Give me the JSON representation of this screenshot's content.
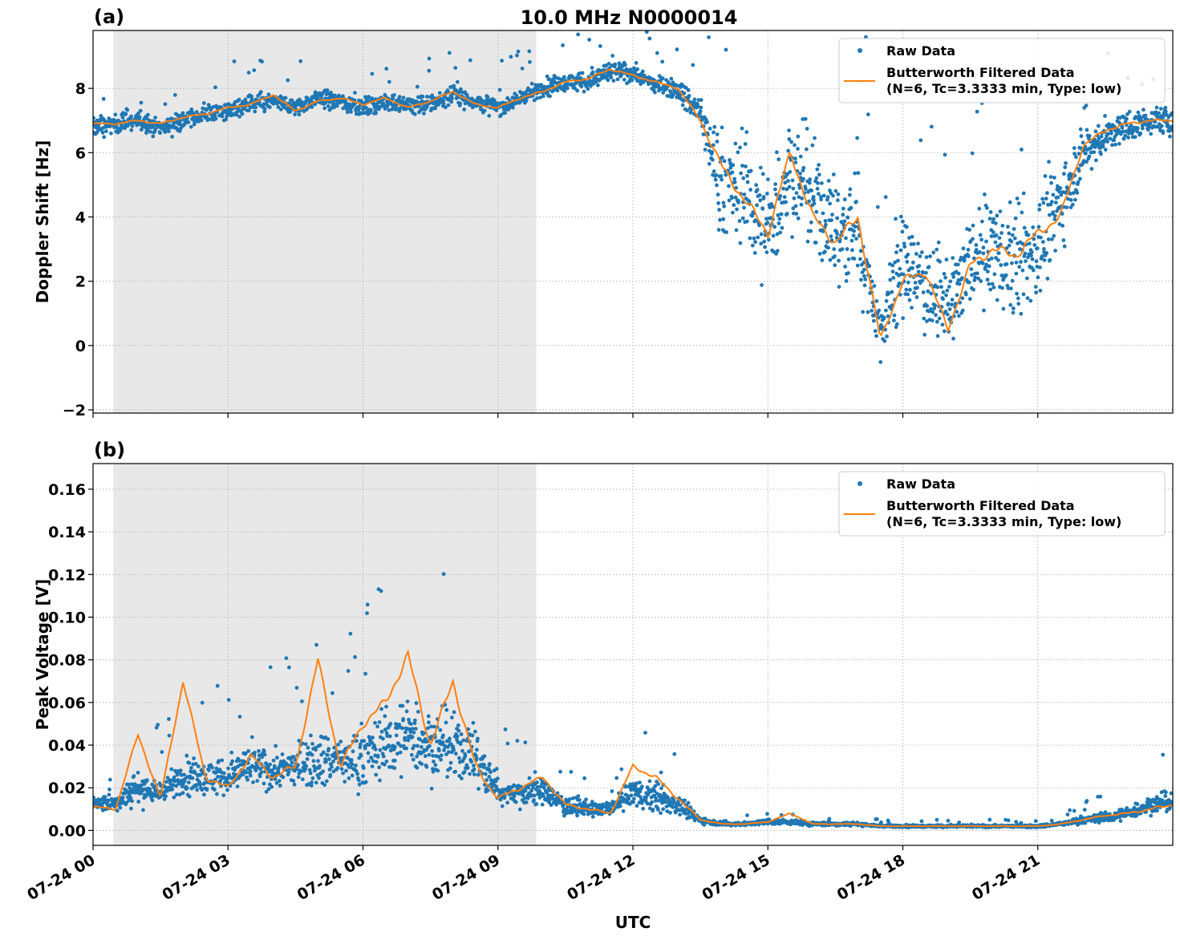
{
  "figure": {
    "title": "10.0 MHz N0000014",
    "xlabel": "UTC"
  },
  "chart_data": [
    {
      "panel_label": "(a)",
      "type": "scatter",
      "title": "10.0 MHz N0000014",
      "ylabel": "Doppler Shift [Hz]",
      "xlabel": "",
      "x_unit": "hours since 07-24 00 UTC",
      "xlim": [
        0,
        24
      ],
      "ylim": [
        -2.1,
        9.8
      ],
      "yticks": [
        -2,
        0,
        2,
        4,
        6,
        8
      ],
      "ytick_labels": [
        "−2",
        "0",
        "2",
        "4",
        "6",
        "8"
      ],
      "xticks": [
        0,
        3,
        6,
        9,
        12,
        15,
        18,
        21
      ],
      "xtick_labels": [
        "07-24 00",
        "07-24 03",
        "07-24 06",
        "07-24 09",
        "07-24 12",
        "07-24 15",
        "07-24 18",
        "07-24 21"
      ],
      "grid": true,
      "shaded_region": [
        0.45,
        9.85
      ],
      "legend_position": "top-right",
      "colors": {
        "raw": "#1f77b4",
        "filtered": "#ff7f0e",
        "shade": "#e8e8e8"
      },
      "series": [
        {
          "name": "Raw Data",
          "kind": "scatter",
          "color": "#1f77b4",
          "x": [
            0.0,
            0.5,
            1.0,
            1.5,
            2.0,
            2.5,
            3.0,
            3.5,
            4.0,
            4.5,
            5.0,
            5.5,
            6.0,
            6.5,
            7.0,
            7.5,
            8.0,
            8.5,
            9.0,
            9.5,
            10.0,
            10.5,
            11.0,
            11.5,
            12.0,
            12.5,
            13.0,
            13.5,
            14.0,
            14.5,
            15.0,
            15.5,
            16.0,
            16.5,
            17.0,
            17.5,
            18.0,
            18.5,
            19.0,
            19.5,
            20.0,
            20.5,
            21.0,
            21.5,
            22.0,
            22.5,
            23.0,
            23.5,
            24.0
          ],
          "center": [
            6.8,
            6.9,
            7.0,
            6.8,
            7.0,
            7.2,
            7.3,
            7.5,
            7.6,
            7.4,
            7.7,
            7.6,
            7.4,
            7.6,
            7.5,
            7.5,
            7.8,
            7.6,
            7.4,
            7.7,
            8.0,
            8.2,
            8.2,
            8.5,
            8.5,
            8.1,
            8.0,
            7.2,
            5.0,
            4.8,
            3.5,
            5.5,
            4.5,
            3.5,
            3.5,
            0.5,
            2.5,
            2.0,
            1.2,
            2.5,
            3.0,
            2.5,
            3.0,
            4.5,
            6.0,
            6.5,
            6.8,
            7.0,
            7.0
          ],
          "spread": [
            0.5,
            0.5,
            0.5,
            0.5,
            0.5,
            0.5,
            0.5,
            0.5,
            0.5,
            0.5,
            0.5,
            0.5,
            0.5,
            0.5,
            0.5,
            0.5,
            0.5,
            0.5,
            0.5,
            0.5,
            0.5,
            0.5,
            0.5,
            0.6,
            0.5,
            0.5,
            0.5,
            1.0,
            2.8,
            3.0,
            3.2,
            2.8,
            3.0,
            3.0,
            3.2,
            1.5,
            2.8,
            2.5,
            2.0,
            2.8,
            3.0,
            3.0,
            2.8,
            2.5,
            1.5,
            1.0,
            0.8,
            0.7,
            0.7
          ]
        },
        {
          "name": "Butterworth Filtered Data\n(N=6, Tc=3.3333 min, Type: low)",
          "kind": "line",
          "color": "#ff7f0e",
          "x": [
            0.0,
            0.5,
            1.0,
            1.5,
            2.0,
            2.5,
            3.0,
            3.5,
            4.0,
            4.5,
            5.0,
            5.5,
            6.0,
            6.5,
            7.0,
            7.5,
            8.0,
            8.5,
            9.0,
            9.5,
            10.0,
            10.5,
            11.0,
            11.5,
            12.0,
            12.5,
            13.0,
            13.5,
            14.0,
            14.5,
            15.0,
            15.5,
            16.0,
            16.5,
            17.0,
            17.5,
            18.0,
            18.5,
            19.0,
            19.5,
            20.0,
            20.5,
            21.0,
            21.5,
            22.0,
            22.5,
            23.0,
            23.5,
            24.0
          ],
          "y": [
            6.9,
            6.9,
            7.0,
            6.9,
            7.1,
            7.2,
            7.4,
            7.5,
            7.8,
            7.3,
            7.6,
            7.7,
            7.5,
            7.7,
            7.4,
            7.6,
            7.9,
            7.5,
            7.4,
            7.7,
            7.9,
            8.2,
            8.3,
            8.6,
            8.4,
            8.2,
            8.0,
            7.0,
            5.5,
            4.5,
            3.5,
            6.0,
            4.0,
            3.2,
            4.0,
            0.2,
            2.0,
            2.3,
            0.5,
            2.5,
            3.0,
            2.8,
            3.5,
            4.0,
            6.2,
            6.7,
            6.9,
            7.0,
            7.0
          ]
        }
      ]
    },
    {
      "panel_label": "(b)",
      "type": "scatter",
      "ylabel": "Peak Voltage [V]",
      "xlabel": "UTC",
      "x_unit": "hours since 07-24 00 UTC",
      "xlim": [
        0,
        24
      ],
      "ylim": [
        -0.007,
        0.172
      ],
      "yticks": [
        0.0,
        0.02,
        0.04,
        0.06,
        0.08,
        0.1,
        0.12,
        0.14,
        0.16
      ],
      "ytick_labels": [
        "0.00",
        "0.02",
        "0.04",
        "0.06",
        "0.08",
        "0.10",
        "0.12",
        "0.14",
        "0.16"
      ],
      "xticks": [
        0,
        3,
        6,
        9,
        12,
        15,
        18,
        21
      ],
      "xtick_labels": [
        "07-24 00",
        "07-24 03",
        "07-24 06",
        "07-24 09",
        "07-24 12",
        "07-24 15",
        "07-24 18",
        "07-24 21"
      ],
      "grid": true,
      "shaded_region": [
        0.45,
        9.85
      ],
      "legend_position": "top-right",
      "colors": {
        "raw": "#1f77b4",
        "filtered": "#ff7f0e",
        "shade": "#e8e8e8"
      },
      "series": [
        {
          "name": "Raw Data",
          "kind": "scatter",
          "color": "#1f77b4",
          "x": [
            0.0,
            0.5,
            1.0,
            1.5,
            2.0,
            2.5,
            3.0,
            3.5,
            4.0,
            4.5,
            5.0,
            5.5,
            6.0,
            6.5,
            7.0,
            7.5,
            8.0,
            8.5,
            9.0,
            9.5,
            10.0,
            10.5,
            11.0,
            11.5,
            12.0,
            12.5,
            13.0,
            13.5,
            14.0,
            14.5,
            15.0,
            15.5,
            16.0,
            16.5,
            17.0,
            17.5,
            18.0,
            18.5,
            19.0,
            19.5,
            20.0,
            20.5,
            21.0,
            21.5,
            22.0,
            22.5,
            23.0,
            23.5,
            24.0
          ],
          "center": [
            0.012,
            0.013,
            0.02,
            0.018,
            0.025,
            0.025,
            0.025,
            0.03,
            0.028,
            0.03,
            0.035,
            0.032,
            0.035,
            0.04,
            0.045,
            0.04,
            0.038,
            0.035,
            0.018,
            0.018,
            0.018,
            0.012,
            0.01,
            0.01,
            0.018,
            0.015,
            0.012,
            0.005,
            0.003,
            0.003,
            0.004,
            0.004,
            0.003,
            0.003,
            0.003,
            0.002,
            0.002,
            0.002,
            0.002,
            0.002,
            0.002,
            0.002,
            0.002,
            0.003,
            0.005,
            0.006,
            0.008,
            0.012,
            0.013
          ],
          "spread": [
            0.006,
            0.007,
            0.015,
            0.01,
            0.015,
            0.015,
            0.014,
            0.016,
            0.016,
            0.018,
            0.022,
            0.02,
            0.025,
            0.028,
            0.03,
            0.028,
            0.026,
            0.026,
            0.01,
            0.012,
            0.01,
            0.008,
            0.006,
            0.006,
            0.012,
            0.012,
            0.008,
            0.003,
            0.0015,
            0.0015,
            0.002,
            0.002,
            0.0015,
            0.0015,
            0.0015,
            0.001,
            0.001,
            0.001,
            0.001,
            0.001,
            0.001,
            0.001,
            0.001,
            0.0015,
            0.003,
            0.004,
            0.005,
            0.007,
            0.008
          ]
        },
        {
          "name": "Butterworth Filtered Data\n(N=6, Tc=3.3333 min, Type: low)",
          "kind": "line",
          "color": "#ff7f0e",
          "x": [
            0.0,
            0.5,
            1.0,
            1.5,
            2.0,
            2.5,
            3.0,
            3.5,
            4.0,
            4.5,
            5.0,
            5.5,
            6.0,
            6.5,
            7.0,
            7.5,
            8.0,
            8.5,
            9.0,
            9.5,
            10.0,
            10.5,
            11.0,
            11.5,
            12.0,
            12.5,
            13.0,
            13.5,
            14.0,
            14.5,
            15.0,
            15.5,
            16.0,
            16.5,
            17.0,
            17.5,
            18.0,
            18.5,
            19.0,
            19.5,
            20.0,
            20.5,
            21.0,
            21.5,
            22.0,
            22.5,
            23.0,
            23.5,
            24.0
          ],
          "y": [
            0.011,
            0.01,
            0.045,
            0.015,
            0.07,
            0.025,
            0.02,
            0.035,
            0.025,
            0.03,
            0.08,
            0.03,
            0.05,
            0.06,
            0.082,
            0.04,
            0.07,
            0.03,
            0.015,
            0.02,
            0.025,
            0.012,
            0.01,
            0.008,
            0.03,
            0.025,
            0.015,
            0.005,
            0.003,
            0.003,
            0.004,
            0.008,
            0.003,
            0.003,
            0.003,
            0.002,
            0.002,
            0.002,
            0.002,
            0.002,
            0.002,
            0.002,
            0.002,
            0.003,
            0.005,
            0.007,
            0.008,
            0.01,
            0.012
          ]
        }
      ]
    }
  ]
}
